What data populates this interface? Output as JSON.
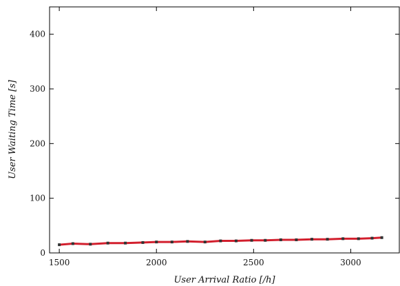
{
  "chart_data": {
    "type": "line",
    "title": "",
    "xlabel": "User Arrival Ratio [/h]",
    "ylabel": "User Waiting Time [s]",
    "xlim": [
      1450,
      3250
    ],
    "ylim": [
      0,
      450
    ],
    "x_ticks": [
      1500,
      2000,
      2500,
      3000
    ],
    "y_ticks": [
      0,
      100,
      200,
      300,
      400
    ],
    "grid": false,
    "legend": "none",
    "series": [
      {
        "color": "#d21f2d",
        "marker": "square",
        "x": [
          1500,
          1570,
          1660,
          1750,
          1840,
          1930,
          2000,
          2080,
          2160,
          2250,
          2330,
          2410,
          2490,
          2560,
          2640,
          2720,
          2800,
          2880,
          2960,
          3040,
          3110,
          3160
        ],
        "y": [
          15,
          17,
          16,
          18,
          18,
          19,
          20,
          20,
          21,
          20,
          22,
          22,
          23,
          23,
          24,
          24,
          25,
          25,
          26,
          26,
          27,
          28
        ]
      }
    ]
  }
}
